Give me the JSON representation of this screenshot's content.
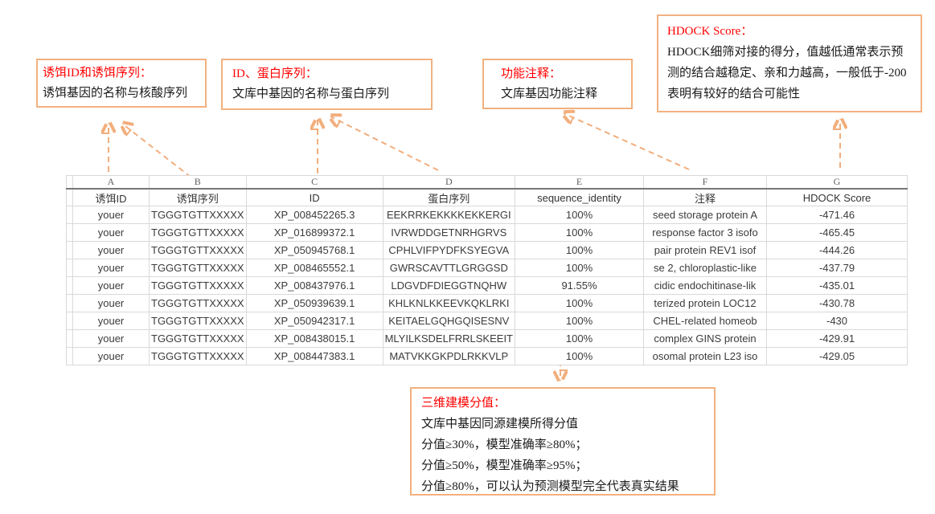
{
  "colors": {
    "callout_border": "#f2b180",
    "arrow": "#f2ae7c",
    "title_red": "#ff0000",
    "grid_line": "#d9d9d9"
  },
  "table": {
    "column_letters": [
      "A",
      "B",
      "C",
      "D",
      "E",
      "F",
      "G"
    ],
    "headers": [
      "诱饵ID",
      "诱饵序列",
      "ID",
      "蛋白序列",
      "sequence_identity",
      "注释",
      "HDOCK Score"
    ],
    "rows": [
      [
        "youer",
        "TGGGTGTTXXXXX",
        "XP_008452265.3",
        "EEKRRKEKKKKEKKERGI",
        "100%",
        "seed storage protein A",
        "-471.46"
      ],
      [
        "youer",
        "TGGGTGTTXXXXX",
        "XP_016899372.1",
        "IVRWDDGETNRHGRVS",
        "100%",
        "response factor 3 isofo",
        "-465.45"
      ],
      [
        "youer",
        "TGGGTGTTXXXXX",
        "XP_050945768.1",
        "CPHLVIFPYDFKSYEGVA",
        "100%",
        "pair protein REV1 isof",
        "-444.26"
      ],
      [
        "youer",
        "TGGGTGTTXXXXX",
        "XP_008465552.1",
        "GWRSCAVTTLGRGGSD",
        "100%",
        "se 2, chloroplastic-like",
        "-437.79"
      ],
      [
        "youer",
        "TGGGTGTTXXXXX",
        "XP_008437976.1",
        "LDGVDFDIEGGTNQHW",
        "91.55%",
        "cidic endochitinase-lik",
        "-435.01"
      ],
      [
        "youer",
        "TGGGTGTTXXXXX",
        "XP_050939639.1",
        "KHLKNLKKEEVKQKLRKI",
        "100%",
        "terized protein LOC12",
        "-430.78"
      ],
      [
        "youer",
        "TGGGTGTTXXXXX",
        "XP_050942317.1",
        "KEITAELGQHGQISESNV",
        "100%",
        "CHEL-related homeob",
        "-430"
      ],
      [
        "youer",
        "TGGGTGTTXXXXX",
        "XP_008438015.1",
        "MLYILKSDELFRRLSKEEIT",
        "100%",
        "complex GINS protein",
        "-429.91"
      ],
      [
        "youer",
        "TGGGTGTTXXXXX",
        "XP_008447383.1",
        "MATVKKGKPDLRKKVLP",
        "100%",
        "osomal protein L23 iso",
        "-429.05"
      ]
    ]
  },
  "annotations": {
    "bait": {
      "title": "诱饵ID和诱饵序列：",
      "body": "诱饵基因的名称与核酸序列"
    },
    "id_protein": {
      "title": "ID、蛋白序列：",
      "body": "文库中基因的名称与蛋白序列"
    },
    "function": {
      "title": "功能注释：",
      "body": "文库基因功能注释"
    },
    "hdock": {
      "title": "HDOCK Score：",
      "body": "HDOCK细筛对接的得分，值越低通常表示预测的结合越稳定、亲和力越高，一般低于-200表明有较好的结合可能性"
    },
    "modeling": {
      "title": "三维建模分值：",
      "lines": [
        "文库中基因同源建模所得分值",
        "分值≥30%，模型准确率≥80%；",
        "分值≥50%，模型准确率≥95%；",
        "分值≥80%，可以认为预测模型完全代表真实结果"
      ]
    }
  }
}
